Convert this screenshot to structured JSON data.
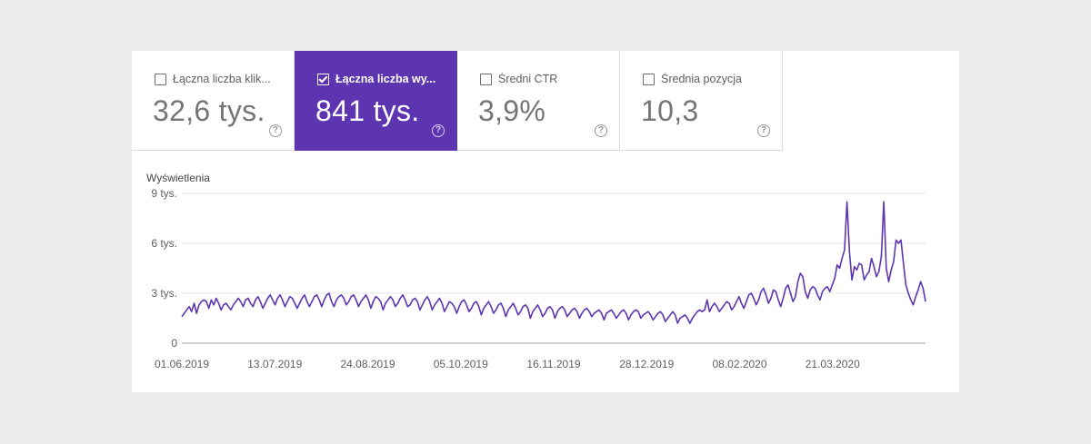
{
  "tiles": [
    {
      "label": "Łączna liczba klik...",
      "value": "32,6 tys.",
      "selected": false
    },
    {
      "label": "Łączna liczba wy...",
      "value": "841 tys.",
      "selected": true
    },
    {
      "label": "Średni CTR",
      "value": "3,9%",
      "selected": false
    },
    {
      "label": "Średnia pozycja",
      "value": "10,3",
      "selected": false
    }
  ],
  "colors": {
    "accent": "#5e35b1",
    "line": "#5e35b1",
    "grid": "#e6e6e6"
  },
  "chart_data": {
    "type": "line",
    "title": "Wyświetlenia",
    "ylim": [
      0,
      9000
    ],
    "y_ticks": [
      {
        "value": 0,
        "label": "0"
      },
      {
        "value": 3000,
        "label": "3 tys."
      },
      {
        "value": 6000,
        "label": "6 tys."
      },
      {
        "value": 9000,
        "label": "9 tys."
      }
    ],
    "x_start": "2019-06-01",
    "x_end": "2020-05-02",
    "x_ticks": [
      "01.06.2019",
      "13.07.2019",
      "24.08.2019",
      "05.10.2019",
      "16.11.2019",
      "28.12.2019",
      "08.02.2020",
      "21.03.2020"
    ],
    "series": [
      {
        "name": "Wyświetlenia",
        "values": [
          1600,
          1800,
          2000,
          2200,
          1900,
          2400,
          1800,
          2300,
          2500,
          2600,
          2500,
          2100,
          2600,
          2300,
          2700,
          2400,
          2000,
          2300,
          2400,
          2200,
          2000,
          2300,
          2500,
          2700,
          2500,
          2200,
          2600,
          2700,
          2400,
          2200,
          2600,
          2800,
          2500,
          2100,
          2400,
          2700,
          2900,
          2600,
          2300,
          2700,
          2900,
          2600,
          2200,
          2500,
          2800,
          2700,
          2400,
          2100,
          2400,
          2700,
          2900,
          2500,
          2200,
          2500,
          2800,
          2900,
          2600,
          2200,
          2600,
          2900,
          3000,
          2500,
          2200,
          2600,
          2800,
          2900,
          2700,
          2300,
          2500,
          2800,
          2900,
          2600,
          2200,
          2500,
          2700,
          2900,
          2600,
          2100,
          2500,
          2800,
          2700,
          2500,
          2000,
          2400,
          2600,
          2800,
          2600,
          2200,
          2400,
          2700,
          2900,
          2600,
          2200,
          2300,
          2600,
          2700,
          2500,
          2000,
          2300,
          2600,
          2800,
          2500,
          2000,
          2300,
          2500,
          2700,
          2400,
          1900,
          2200,
          2500,
          2400,
          2200,
          1800,
          2200,
          2500,
          2600,
          2300,
          1900,
          2100,
          2400,
          2500,
          2200,
          1700,
          2100,
          2300,
          2500,
          2200,
          1800,
          2000,
          2300,
          2400,
          2100,
          1600,
          2000,
          2200,
          2400,
          2100,
          1700,
          1900,
          2200,
          2300,
          2100,
          1500,
          1900,
          2100,
          2300,
          2000,
          1600,
          1800,
          2100,
          2200,
          2000,
          1500,
          1900,
          2100,
          2200,
          2000,
          1600,
          1800,
          2000,
          2100,
          1900,
          1500,
          1800,
          2000,
          2100,
          1900,
          1600,
          1800,
          1900,
          2000,
          1800,
          1400,
          1800,
          1900,
          2000,
          1800,
          1500,
          1700,
          1900,
          2000,
          1800,
          1400,
          1700,
          1900,
          2000,
          1900,
          1500,
          1700,
          1800,
          1900,
          1700,
          1400,
          1600,
          1800,
          1900,
          1700,
          1300,
          1500,
          1700,
          1900,
          1700,
          1200,
          1500,
          1600,
          1700,
          1500,
          1200,
          1500,
          1700,
          1900,
          2000,
          1900,
          2000,
          2600,
          1900,
          2200,
          2400,
          2200,
          1900,
          2100,
          2300,
          2500,
          2400,
          2000,
          2200,
          2500,
          2800,
          2400,
          2100,
          2500,
          2900,
          3000,
          2700,
          2300,
          2600,
          3100,
          3300,
          2900,
          2400,
          2700,
          3200,
          3100,
          2600,
          2200,
          2700,
          3300,
          3500,
          3000,
          2500,
          2800,
          3700,
          4200,
          4000,
          3100,
          2700,
          3200,
          3400,
          3300,
          2900,
          2600,
          3100,
          3300,
          3400,
          3100,
          3500,
          3900,
          4700,
          4500,
          5100,
          5600,
          8500,
          5500,
          3800,
          4600,
          4400,
          4800,
          4700,
          3800,
          4100,
          4300,
          5100,
          4600,
          4000,
          4300,
          5200,
          8500,
          4500,
          3700,
          4400,
          4900,
          6200,
          6000,
          6200,
          4800,
          3500,
          3000,
          2600,
          2300,
          2800,
          3200,
          3700,
          3300,
          2500
        ]
      }
    ]
  }
}
